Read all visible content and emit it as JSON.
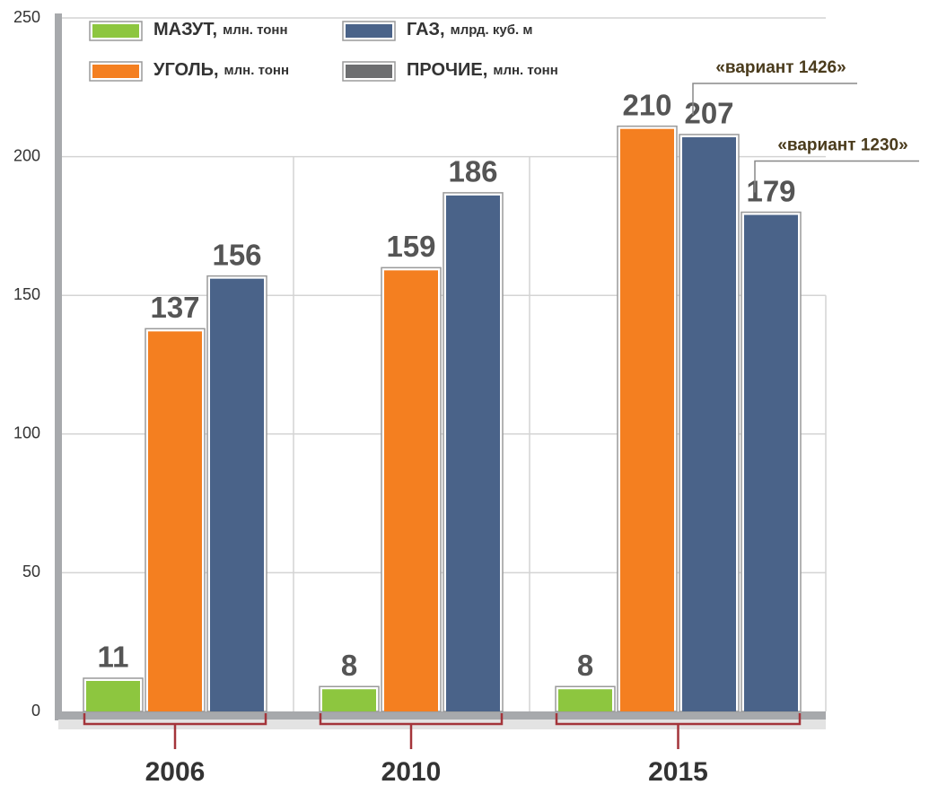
{
  "chart_data": {
    "type": "bar",
    "categories": [
      "2006",
      "2010",
      "2015"
    ],
    "series": [
      {
        "name": "МАЗУТ,",
        "unit": "млн. тонн",
        "color": "#8dc63f",
        "values": [
          11,
          8,
          8
        ]
      },
      {
        "name": "УГОЛЬ,",
        "unit": "млн. тонн",
        "color": "#f47f20",
        "values": [
          137,
          159,
          210
        ]
      },
      {
        "name": "ГАЗ,",
        "unit": "млрд. куб. м",
        "color": "#4a6389",
        "values": [
          156,
          186,
          207
        ],
        "annotation": "«вариант 1426»"
      },
      {
        "name": "ПРОЧИЕ,",
        "unit": "млн. тонн",
        "color": "#6d6e70",
        "values": [
          null,
          null,
          null
        ]
      },
      {
        "color": "#4a6389",
        "values": [
          null,
          null,
          179
        ],
        "annotation": "«вариант 1230»"
      }
    ],
    "ylim": [
      0,
      250
    ],
    "yticks": [
      0,
      50,
      100,
      150,
      200,
      250
    ],
    "grid": true
  }
}
